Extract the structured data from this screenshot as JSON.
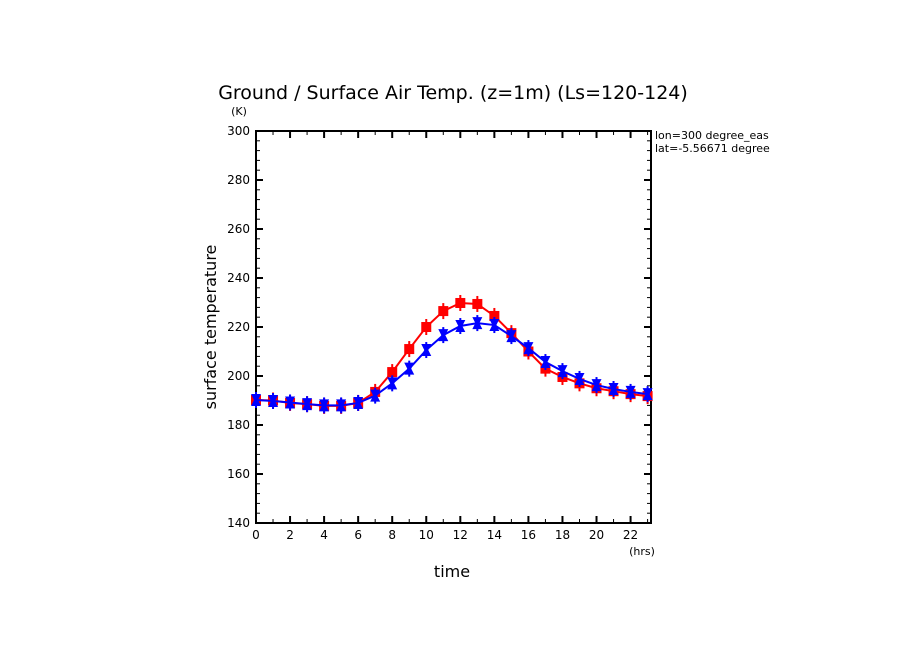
{
  "chart_data": {
    "type": "line",
    "title": "Ground / Surface Air Temp. (z=1m) (Ls=120-124)",
    "xlabel": "time",
    "ylabel": "surface temperature",
    "x_unit": "(hrs)",
    "y_unit": "(K)",
    "annotations": [
      "lon=300 degree_eas",
      "lat=-5.56671 degree"
    ],
    "xlim": [
      0,
      23.2
    ],
    "ylim": [
      140,
      300
    ],
    "x_ticks": [
      0,
      2,
      4,
      6,
      8,
      10,
      12,
      14,
      16,
      18,
      20,
      22
    ],
    "y_ticks": [
      140,
      160,
      180,
      200,
      220,
      240,
      260,
      280,
      300
    ],
    "grid": false,
    "x": [
      0,
      1,
      2,
      3,
      4,
      5,
      6,
      7,
      8,
      9,
      10,
      11,
      12,
      13,
      14,
      15,
      16,
      17,
      18,
      19,
      20,
      21,
      22,
      23
    ],
    "series": [
      {
        "color": "#ff0000",
        "marker": "square",
        "values": [
          190.2,
          190,
          189,
          188.5,
          187.8,
          187.8,
          189,
          193.5,
          201.6,
          211,
          220,
          226.5,
          229.8,
          229.4,
          224.5,
          217.5,
          210,
          203,
          199.6,
          197,
          195,
          193.8,
          192.6,
          191.8
        ]
      },
      {
        "color": "#0000ff",
        "marker": "bowtie",
        "values": [
          190.2,
          189.8,
          189.2,
          188.5,
          188,
          188,
          189,
          192,
          197,
          203,
          210.6,
          216.7,
          220.4,
          221.6,
          220.8,
          216.3,
          211.4,
          205.7,
          202,
          198.8,
          196.3,
          194.7,
          193.5,
          192.6
        ]
      }
    ]
  }
}
